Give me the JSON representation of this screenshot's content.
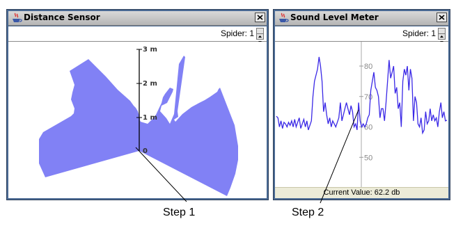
{
  "distance_window": {
    "title": "Distance Sensor",
    "spider_label": "Spider: 1",
    "scale_labels": [
      "3 m",
      "2 m",
      "1 m",
      "0"
    ]
  },
  "sound_window": {
    "title": "Sound Level Meter",
    "spider_label": "Spider: 1",
    "status": "Current Value: 62.2 db",
    "chart_data": {
      "type": "line",
      "ylim": [
        40,
        88
      ],
      "y_ticks": [
        "80",
        "70",
        "60",
        "50"
      ],
      "y_tick_values": [
        80,
        70,
        60,
        50
      ],
      "series": [
        {
          "values": [
            63.5,
            63,
            60,
            62,
            59.5,
            61.5,
            61,
            60,
            61.5,
            60.5,
            62,
            60,
            62.5,
            60,
            61.5,
            63,
            59.5,
            61,
            62.5,
            60,
            62,
            59,
            60.5,
            62,
            70,
            75,
            77,
            79,
            83,
            80,
            75,
            65,
            68,
            64,
            61,
            63,
            60,
            62,
            61,
            60,
            61.5,
            63,
            68,
            62,
            64,
            66,
            68,
            66,
            64,
            67,
            65,
            60,
            61,
            59,
            68,
            62,
            60,
            61,
            60,
            61,
            63,
            64,
            72,
            75,
            78,
            73,
            72,
            70,
            63,
            66,
            66,
            62,
            68,
            75,
            82,
            76,
            78,
            80,
            71,
            73,
            66,
            68,
            60,
            75,
            79,
            77,
            80,
            72,
            79,
            76,
            62,
            70,
            68,
            61,
            60,
            63,
            58,
            59,
            65,
            61,
            62,
            66,
            62,
            64,
            62,
            63,
            60,
            65,
            68,
            63,
            65,
            62,
            62.2
          ]
        }
      ]
    }
  },
  "annotations": {
    "step1": "Step 1",
    "step2": "Step 2"
  },
  "colors": {
    "sonar_fill": "#8181f5",
    "line": "#3a28e6"
  }
}
